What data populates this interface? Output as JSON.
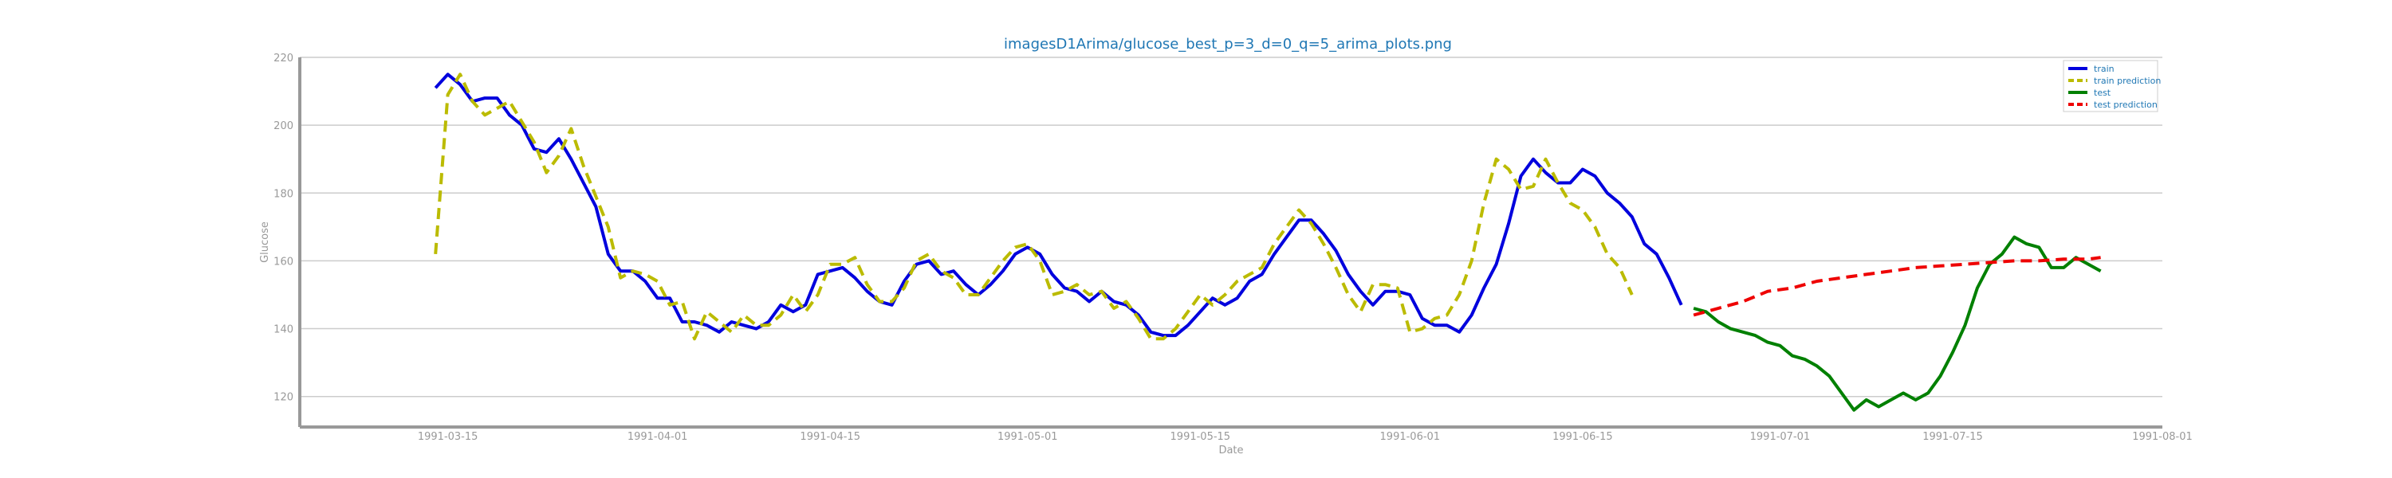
{
  "chart_data": {
    "type": "line",
    "title": "imagesD1Arima/glucose_best_p=3_d=0_q=5_arima_plots.png",
    "xlabel": "Date",
    "ylabel": "Glucose",
    "xlim": [
      "1991-03-03",
      "1991-08-01"
    ],
    "ylim": [
      111,
      220
    ],
    "x_ticks": [
      "1991-03-15",
      "1991-04-01",
      "1991-04-15",
      "1991-05-01",
      "1991-05-15",
      "1991-06-01",
      "1991-06-15",
      "1991-07-01",
      "1991-07-15",
      "1991-08-01"
    ],
    "y_ticks": [
      120,
      140,
      160,
      180,
      200,
      220
    ],
    "grid": "horizontal",
    "legend_position": "top-right",
    "series": [
      {
        "name": "train",
        "color": "#0000dd",
        "style": "solid",
        "points": [
          [
            "1991-03-14",
            211
          ],
          [
            "1991-03-15",
            215
          ],
          [
            "1991-03-16",
            212
          ],
          [
            "1991-03-17",
            207
          ],
          [
            "1991-03-18",
            208
          ],
          [
            "1991-03-19",
            208
          ],
          [
            "1991-03-20",
            203
          ],
          [
            "1991-03-21",
            200
          ],
          [
            "1991-03-22",
            193
          ],
          [
            "1991-03-23",
            192
          ],
          [
            "1991-03-24",
            196
          ],
          [
            "1991-03-25",
            190
          ],
          [
            "1991-03-26",
            183
          ],
          [
            "1991-03-27",
            176
          ],
          [
            "1991-03-28",
            162
          ],
          [
            "1991-03-29",
            157
          ],
          [
            "1991-03-30",
            157
          ],
          [
            "1991-03-31",
            154
          ],
          [
            "1991-04-01",
            149
          ],
          [
            "1991-04-02",
            149
          ],
          [
            "1991-04-03",
            142
          ],
          [
            "1991-04-04",
            142
          ],
          [
            "1991-04-05",
            141
          ],
          [
            "1991-04-06",
            139
          ],
          [
            "1991-04-07",
            142
          ],
          [
            "1991-04-08",
            141
          ],
          [
            "1991-04-09",
            140
          ],
          [
            "1991-04-10",
            142
          ],
          [
            "1991-04-11",
            147
          ],
          [
            "1991-04-12",
            145
          ],
          [
            "1991-04-13",
            147
          ],
          [
            "1991-04-14",
            156
          ],
          [
            "1991-04-15",
            157
          ],
          [
            "1991-04-16",
            158
          ],
          [
            "1991-04-17",
            155
          ],
          [
            "1991-04-18",
            151
          ],
          [
            "1991-04-19",
            148
          ],
          [
            "1991-04-20",
            147
          ],
          [
            "1991-04-21",
            154
          ],
          [
            "1991-04-22",
            159
          ],
          [
            "1991-04-23",
            160
          ],
          [
            "1991-04-24",
            156
          ],
          [
            "1991-04-25",
            157
          ],
          [
            "1991-04-26",
            153
          ],
          [
            "1991-04-27",
            150
          ],
          [
            "1991-04-28",
            153
          ],
          [
            "1991-04-29",
            157
          ],
          [
            "1991-04-30",
            162
          ],
          [
            "1991-05-01",
            164
          ],
          [
            "1991-05-02",
            162
          ],
          [
            "1991-05-03",
            156
          ],
          [
            "1991-05-04",
            152
          ],
          [
            "1991-05-05",
            151
          ],
          [
            "1991-05-06",
            148
          ],
          [
            "1991-05-07",
            151
          ],
          [
            "1991-05-08",
            148
          ],
          [
            "1991-05-09",
            147
          ],
          [
            "1991-05-10",
            144
          ],
          [
            "1991-05-11",
            139
          ],
          [
            "1991-05-12",
            138
          ],
          [
            "1991-05-13",
            138
          ],
          [
            "1991-05-14",
            141
          ],
          [
            "1991-05-15",
            145
          ],
          [
            "1991-05-16",
            149
          ],
          [
            "1991-05-17",
            147
          ],
          [
            "1991-05-18",
            149
          ],
          [
            "1991-05-19",
            154
          ],
          [
            "1991-05-20",
            156
          ],
          [
            "1991-05-21",
            162
          ],
          [
            "1991-05-22",
            167
          ],
          [
            "1991-05-23",
            172
          ],
          [
            "1991-05-24",
            172
          ],
          [
            "1991-05-25",
            168
          ],
          [
            "1991-05-26",
            163
          ],
          [
            "1991-05-27",
            156
          ],
          [
            "1991-05-28",
            151
          ],
          [
            "1991-05-29",
            147
          ],
          [
            "1991-05-30",
            151
          ],
          [
            "1991-05-31",
            151
          ],
          [
            "1991-06-01",
            150
          ],
          [
            "1991-06-02",
            143
          ],
          [
            "1991-06-03",
            141
          ],
          [
            "1991-06-04",
            141
          ],
          [
            "1991-06-05",
            139
          ],
          [
            "1991-06-06",
            144
          ],
          [
            "1991-06-07",
            152
          ],
          [
            "1991-06-08",
            159
          ],
          [
            "1991-06-09",
            171
          ],
          [
            "1991-06-10",
            185
          ],
          [
            "1991-06-11",
            190
          ],
          [
            "1991-06-12",
            186
          ],
          [
            "1991-06-13",
            183
          ],
          [
            "1991-06-14",
            183
          ],
          [
            "1991-06-15",
            187
          ],
          [
            "1991-06-16",
            185
          ],
          [
            "1991-06-17",
            180
          ],
          [
            "1991-06-18",
            177
          ],
          [
            "1991-06-19",
            173
          ],
          [
            "1991-06-20",
            165
          ],
          [
            "1991-06-21",
            162
          ],
          [
            "1991-06-22",
            155
          ],
          [
            "1991-06-23",
            147
          ]
        ]
      },
      {
        "name": "train prediction",
        "color": "#bbbb00",
        "style": "dashed",
        "points": [
          [
            "1991-03-14",
            162
          ],
          [
            "1991-03-15",
            209
          ],
          [
            "1991-03-16",
            215
          ],
          [
            "1991-03-17",
            207
          ],
          [
            "1991-03-18",
            203
          ],
          [
            "1991-03-19",
            205
          ],
          [
            "1991-03-20",
            207
          ],
          [
            "1991-03-21",
            201
          ],
          [
            "1991-03-22",
            195
          ],
          [
            "1991-03-23",
            186
          ],
          [
            "1991-03-24",
            191
          ],
          [
            "1991-03-25",
            199
          ],
          [
            "1991-03-26",
            188
          ],
          [
            "1991-03-27",
            179
          ],
          [
            "1991-03-28",
            170
          ],
          [
            "1991-03-29",
            155
          ],
          [
            "1991-03-30",
            157
          ],
          [
            "1991-03-31",
            156
          ],
          [
            "1991-04-01",
            154
          ],
          [
            "1991-04-02",
            147
          ],
          [
            "1991-04-03",
            148
          ],
          [
            "1991-04-04",
            137
          ],
          [
            "1991-04-05",
            145
          ],
          [
            "1991-04-06",
            142
          ],
          [
            "1991-04-07",
            139
          ],
          [
            "1991-04-08",
            144
          ],
          [
            "1991-04-09",
            141
          ],
          [
            "1991-04-10",
            141
          ],
          [
            "1991-04-11",
            144
          ],
          [
            "1991-04-12",
            150
          ],
          [
            "1991-04-13",
            145
          ],
          [
            "1991-04-14",
            150
          ],
          [
            "1991-04-15",
            159
          ],
          [
            "1991-04-16",
            159
          ],
          [
            "1991-04-17",
            161
          ],
          [
            "1991-04-18",
            153
          ],
          [
            "1991-04-19",
            148
          ],
          [
            "1991-04-20",
            148
          ],
          [
            "1991-04-21",
            152
          ],
          [
            "1991-04-22",
            160
          ],
          [
            "1991-04-23",
            162
          ],
          [
            "1991-04-24",
            157
          ],
          [
            "1991-04-25",
            155
          ],
          [
            "1991-04-26",
            150
          ],
          [
            "1991-04-27",
            150
          ],
          [
            "1991-04-28",
            155
          ],
          [
            "1991-04-29",
            160
          ],
          [
            "1991-04-30",
            164
          ],
          [
            "1991-05-01",
            165
          ],
          [
            "1991-05-02",
            160
          ],
          [
            "1991-05-03",
            150
          ],
          [
            "1991-05-04",
            151
          ],
          [
            "1991-05-05",
            153
          ],
          [
            "1991-05-06",
            150
          ],
          [
            "1991-05-07",
            151
          ],
          [
            "1991-05-08",
            146
          ],
          [
            "1991-05-09",
            148
          ],
          [
            "1991-05-10",
            143
          ],
          [
            "1991-05-11",
            137
          ],
          [
            "1991-05-12",
            137
          ],
          [
            "1991-05-13",
            140
          ],
          [
            "1991-05-14",
            145
          ],
          [
            "1991-05-15",
            150
          ],
          [
            "1991-05-16",
            147
          ],
          [
            "1991-05-17",
            150
          ],
          [
            "1991-05-18",
            154
          ],
          [
            "1991-05-19",
            156
          ],
          [
            "1991-05-20",
            158
          ],
          [
            "1991-05-21",
            165
          ],
          [
            "1991-05-22",
            170
          ],
          [
            "1991-05-23",
            175
          ],
          [
            "1991-05-24",
            171
          ],
          [
            "1991-05-25",
            165
          ],
          [
            "1991-05-26",
            158
          ],
          [
            "1991-05-27",
            150
          ],
          [
            "1991-05-28",
            145
          ],
          [
            "1991-05-29",
            153
          ],
          [
            "1991-05-30",
            153
          ],
          [
            "1991-05-31",
            152
          ],
          [
            "1991-06-01",
            139
          ],
          [
            "1991-06-02",
            140
          ],
          [
            "1991-06-03",
            143
          ],
          [
            "1991-06-04",
            144
          ],
          [
            "1991-06-05",
            150
          ],
          [
            "1991-06-06",
            160
          ],
          [
            "1991-06-07",
            177
          ],
          [
            "1991-06-08",
            190
          ],
          [
            "1991-06-09",
            187
          ],
          [
            "1991-06-10",
            181
          ],
          [
            "1991-06-11",
            182
          ],
          [
            "1991-06-12",
            190
          ],
          [
            "1991-06-13",
            183
          ],
          [
            "1991-06-14",
            177
          ],
          [
            "1991-06-15",
            175
          ],
          [
            "1991-06-16",
            170
          ],
          [
            "1991-06-17",
            162
          ],
          [
            "1991-06-18",
            158
          ],
          [
            "1991-06-19",
            150
          ]
        ]
      },
      {
        "name": "test",
        "color": "#008000",
        "style": "solid",
        "points": [
          [
            "1991-06-24",
            146
          ],
          [
            "1991-06-25",
            145
          ],
          [
            "1991-06-26",
            142
          ],
          [
            "1991-06-27",
            140
          ],
          [
            "1991-06-28",
            139
          ],
          [
            "1991-06-29",
            138
          ],
          [
            "1991-06-30",
            136
          ],
          [
            "1991-07-01",
            135
          ],
          [
            "1991-07-02",
            132
          ],
          [
            "1991-07-03",
            131
          ],
          [
            "1991-07-04",
            129
          ],
          [
            "1991-07-05",
            126
          ],
          [
            "1991-07-06",
            121
          ],
          [
            "1991-07-07",
            116
          ],
          [
            "1991-07-08",
            119
          ],
          [
            "1991-07-09",
            117
          ],
          [
            "1991-07-10",
            119
          ],
          [
            "1991-07-11",
            121
          ],
          [
            "1991-07-12",
            119
          ],
          [
            "1991-07-13",
            121
          ],
          [
            "1991-07-14",
            126
          ],
          [
            "1991-07-15",
            133
          ],
          [
            "1991-07-16",
            141
          ],
          [
            "1991-07-17",
            152
          ],
          [
            "1991-07-18",
            159
          ],
          [
            "1991-07-19",
            162
          ],
          [
            "1991-07-20",
            167
          ],
          [
            "1991-07-21",
            165
          ],
          [
            "1991-07-22",
            164
          ],
          [
            "1991-07-23",
            158
          ],
          [
            "1991-07-24",
            158
          ],
          [
            "1991-07-25",
            161
          ],
          [
            "1991-07-26",
            159
          ],
          [
            "1991-07-27",
            157
          ]
        ]
      },
      {
        "name": "test prediction",
        "color": "#ee0000",
        "style": "dashed",
        "points": [
          [
            "1991-06-24",
            144
          ],
          [
            "1991-06-26",
            146
          ],
          [
            "1991-06-28",
            148
          ],
          [
            "1991-06-30",
            151
          ],
          [
            "1991-07-02",
            152
          ],
          [
            "1991-07-04",
            154
          ],
          [
            "1991-07-06",
            155
          ],
          [
            "1991-07-08",
            156
          ],
          [
            "1991-07-10",
            157
          ],
          [
            "1991-07-12",
            158
          ],
          [
            "1991-07-14",
            158.5
          ],
          [
            "1991-07-16",
            159
          ],
          [
            "1991-07-18",
            159.5
          ],
          [
            "1991-07-20",
            160
          ],
          [
            "1991-07-22",
            160
          ],
          [
            "1991-07-24",
            160.5
          ],
          [
            "1991-07-26",
            160.5
          ],
          [
            "1991-07-27",
            161
          ]
        ]
      }
    ]
  }
}
